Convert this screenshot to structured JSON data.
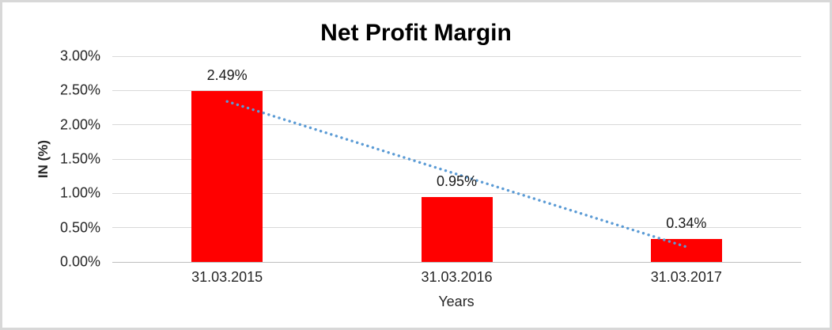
{
  "chart_data": {
    "type": "bar",
    "title": "Net Profit Margin",
    "xlabel": "Years",
    "ylabel": "IN (%)",
    "categories": [
      "31.03.2015",
      "31.03.2016",
      "31.03.2017"
    ],
    "values": [
      2.49,
      0.95,
      0.34
    ],
    "data_labels": [
      "2.49%",
      "0.95%",
      "0.34%"
    ],
    "ytick_values": [
      0.0,
      0.5,
      1.0,
      1.5,
      2.0,
      2.5,
      3.0
    ],
    "ytick_labels": [
      "0.00%",
      "0.50%",
      "1.00%",
      "1.50%",
      "2.00%",
      "2.50%",
      "3.00%"
    ],
    "ylim": [
      0,
      3
    ],
    "grid": true,
    "legend": false,
    "bar_color": "#FF0000",
    "trendline": {
      "style": "dotted",
      "color": "#5B9BD5",
      "start_value": 2.34,
      "end_value": 0.22
    }
  },
  "colors": {
    "background": "#FFFFFF",
    "frame_border": "#D8D8D8",
    "gridline": "#D9D9D9",
    "axis_line": "#BFBFBF",
    "tick_text": "#262626",
    "title_text": "#000000"
  }
}
